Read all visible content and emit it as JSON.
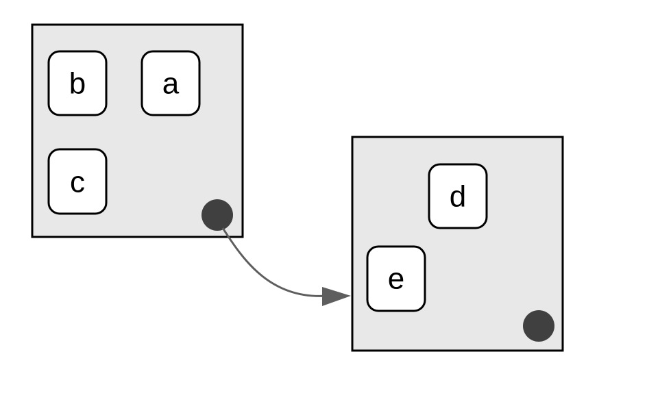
{
  "diagram": {
    "groups": [
      {
        "id": "group-left",
        "nodes": [
          {
            "id": "b",
            "label": "b"
          },
          {
            "id": "a",
            "label": "a"
          },
          {
            "id": "c",
            "label": "c"
          }
        ]
      },
      {
        "id": "group-right",
        "nodes": [
          {
            "id": "d",
            "label": "d"
          },
          {
            "id": "e",
            "label": "e"
          }
        ]
      }
    ],
    "edges": [
      {
        "from": "group-left-port",
        "to": "group-right"
      }
    ],
    "colors": {
      "group_fill": "#e8e8e8",
      "node_fill": "#ffffff",
      "port": "#404040",
      "edge": "#5e5e5e"
    }
  }
}
